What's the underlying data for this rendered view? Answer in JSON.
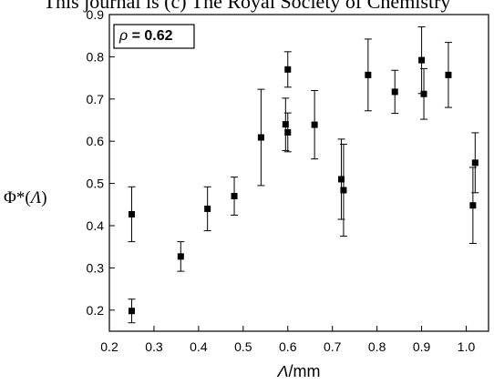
{
  "header_text": "This journal is (c) The Royal Society of Chemistry",
  "chart_data": {
    "type": "scatter",
    "title": "",
    "xlabel": {
      "italic": "Λ",
      "rest": "/mm"
    },
    "ylabel": {
      "main": "Φ*(",
      "italic": "Λ",
      "close": ")"
    },
    "xlim": [
      0.2,
      1.05
    ],
    "ylim": [
      0.15,
      0.9
    ],
    "x_ticks": [
      0.2,
      0.3,
      0.4,
      0.5,
      0.6,
      0.7,
      0.8,
      0.9,
      1.0
    ],
    "x_tick_labels": [
      "0.2",
      "0.3",
      "0.4",
      "0.5",
      "0.6",
      "0.7",
      "0.8",
      "0.9",
      "1.0"
    ],
    "y_ticks": [
      0.2,
      0.3,
      0.4,
      0.5,
      0.6,
      0.7,
      0.8,
      0.9
    ],
    "y_tick_labels": [
      "0.2",
      "0.3",
      "0.4",
      "0.5",
      "0.6",
      "0.7",
      "0.8",
      "0.9"
    ],
    "annotation": {
      "symbol": "ρ",
      "text": " = 0.62"
    },
    "series": [
      {
        "points": [
          {
            "x": 0.25,
            "y": 0.198,
            "lo": 0.17,
            "hi": 0.226
          },
          {
            "x": 0.25,
            "y": 0.427,
            "lo": 0.362,
            "hi": 0.492
          },
          {
            "x": 0.36,
            "y": 0.327,
            "lo": 0.292,
            "hi": 0.362
          },
          {
            "x": 0.42,
            "y": 0.44,
            "lo": 0.388,
            "hi": 0.492
          },
          {
            "x": 0.48,
            "y": 0.47,
            "lo": 0.425,
            "hi": 0.515
          },
          {
            "x": 0.54,
            "y": 0.609,
            "lo": 0.495,
            "hi": 0.723
          },
          {
            "x": 0.595,
            "y": 0.64,
            "lo": 0.578,
            "hi": 0.702
          },
          {
            "x": 0.6,
            "y": 0.77,
            "lo": 0.728,
            "hi": 0.812
          },
          {
            "x": 0.6,
            "y": 0.621,
            "lo": 0.575,
            "hi": 0.667
          },
          {
            "x": 0.66,
            "y": 0.639,
            "lo": 0.558,
            "hi": 0.72
          },
          {
            "x": 0.72,
            "y": 0.51,
            "lo": 0.415,
            "hi": 0.605
          },
          {
            "x": 0.725,
            "y": 0.484,
            "lo": 0.375,
            "hi": 0.593
          },
          {
            "x": 0.78,
            "y": 0.757,
            "lo": 0.672,
            "hi": 0.842
          },
          {
            "x": 0.84,
            "y": 0.717,
            "lo": 0.666,
            "hi": 0.768
          },
          {
            "x": 0.9,
            "y": 0.792,
            "lo": 0.713,
            "hi": 0.871
          },
          {
            "x": 0.905,
            "y": 0.712,
            "lo": 0.652,
            "hi": 0.772
          },
          {
            "x": 0.96,
            "y": 0.757,
            "lo": 0.68,
            "hi": 0.834
          },
          {
            "x": 1.015,
            "y": 0.448,
            "lo": 0.358,
            "hi": 0.538
          },
          {
            "x": 1.02,
            "y": 0.549,
            "lo": 0.478,
            "hi": 0.62
          }
        ]
      }
    ]
  }
}
